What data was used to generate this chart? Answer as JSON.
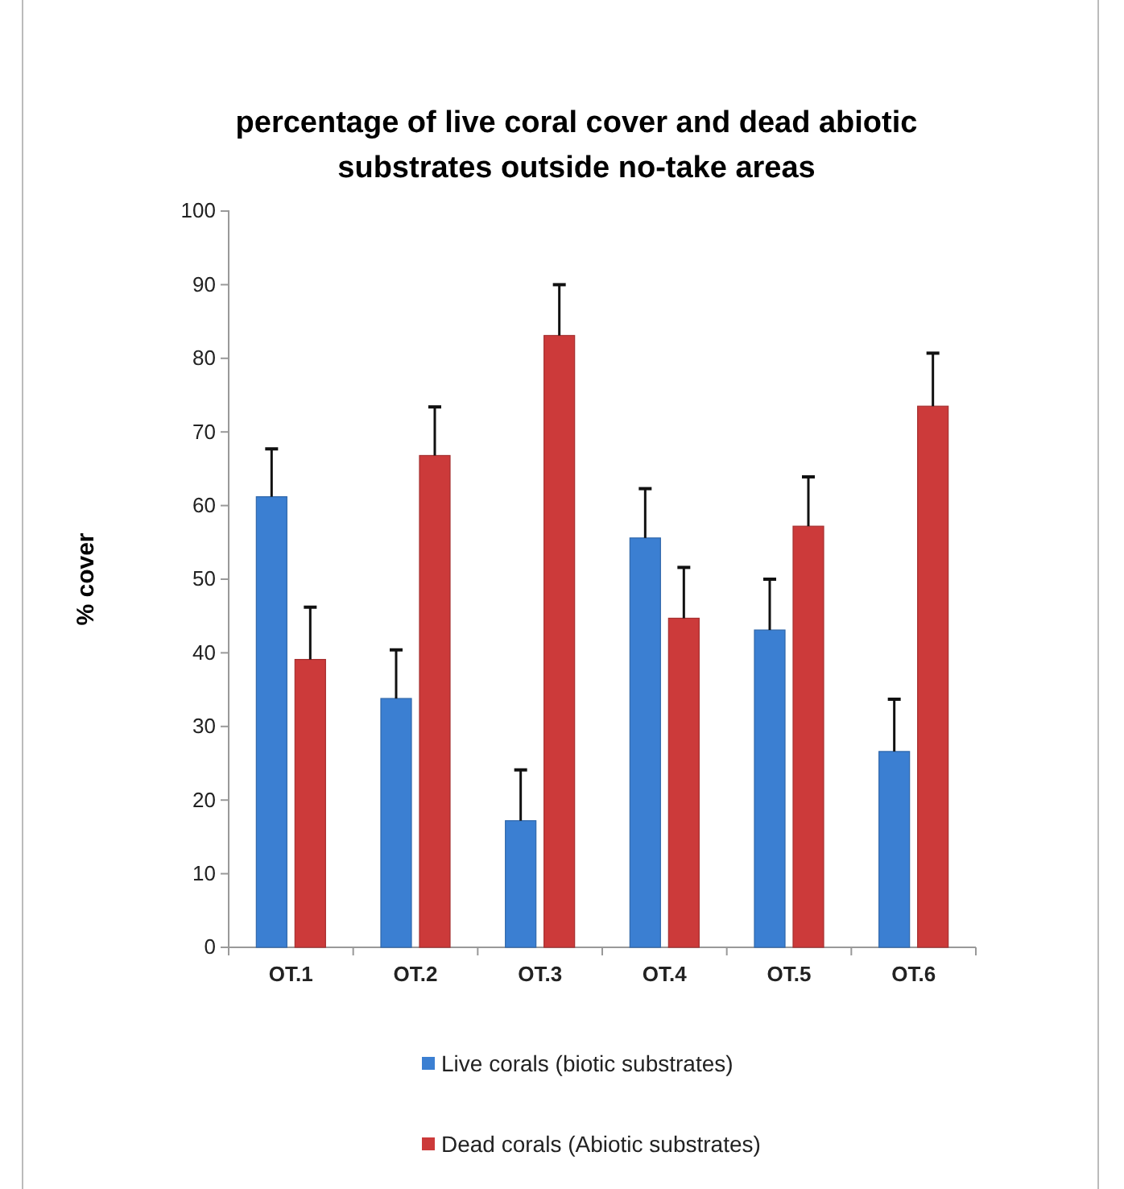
{
  "chart_data": {
    "type": "bar",
    "title": "percentage of live coral cover and dead abiotic substrates outside no-take areas",
    "ylabel": "% cover",
    "categories": [
      "OT.1",
      "OT.2",
      "OT.3",
      "OT.4",
      "OT.5",
      "OT.6"
    ],
    "series": [
      {
        "name": "Live corals (biotic substrates)",
        "color": "#3b7fd2",
        "values": [
          61.2,
          33.8,
          17.2,
          55.6,
          43.1,
          26.6
        ],
        "errors": [
          [
            61.2,
            67.7
          ],
          [
            33.8,
            40.4
          ],
          [
            17.2,
            24.1
          ],
          [
            55.6,
            62.3
          ],
          [
            43.1,
            50.0
          ],
          [
            26.6,
            33.7
          ]
        ]
      },
      {
        "name": "Dead corals (Abiotic substrates)",
        "color": "#cc3a3a",
        "values": [
          39.1,
          66.8,
          83.1,
          44.7,
          57.2,
          73.5
        ],
        "errors": [
          [
            39.1,
            46.2
          ],
          [
            66.8,
            73.4
          ],
          [
            83.1,
            90.0
          ],
          [
            44.7,
            51.6
          ],
          [
            57.2,
            63.9
          ],
          [
            73.5,
            80.7
          ]
        ]
      }
    ],
    "ylim": [
      0,
      100
    ],
    "yticks": [
      0,
      10,
      20,
      30,
      40,
      50,
      60,
      70,
      80,
      90,
      100
    ],
    "legend": "bottom"
  }
}
